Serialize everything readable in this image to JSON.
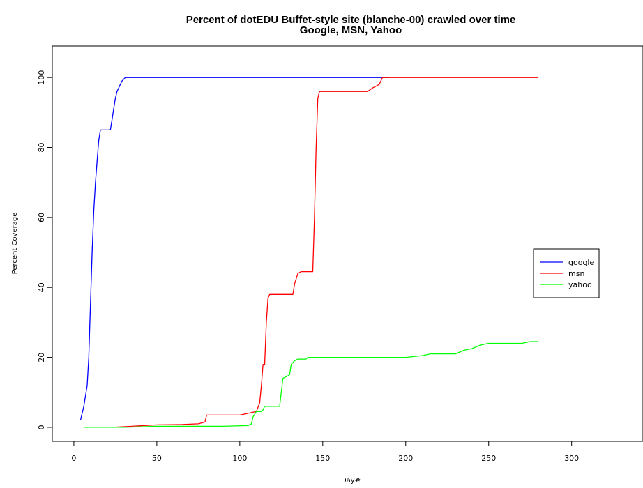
{
  "chart_data": {
    "type": "line",
    "title": "Percent of dotEDU Buffet-style site (blanche-00) crawled over time",
    "subtitle": "Google, MSN, Yahoo",
    "xlabel": "Day#",
    "ylabel": "Percent Coverage",
    "xlim": [
      -13,
      343
    ],
    "ylim": [
      -4,
      109
    ],
    "xticks": [
      0,
      50,
      100,
      150,
      200,
      250,
      300
    ],
    "yticks": [
      0,
      20,
      40,
      60,
      80,
      100
    ],
    "legend_position": "right",
    "grid": false,
    "series": [
      {
        "name": "google",
        "color": "#0000ff",
        "points": [
          [
            4,
            2
          ],
          [
            6,
            6
          ],
          [
            8,
            12
          ],
          [
            9,
            20
          ],
          [
            10,
            35
          ],
          [
            11,
            50
          ],
          [
            12,
            62
          ],
          [
            13,
            70
          ],
          [
            14,
            76
          ],
          [
            15,
            82
          ],
          [
            16,
            85
          ],
          [
            22,
            85
          ],
          [
            23,
            88
          ],
          [
            24,
            91
          ],
          [
            25,
            94
          ],
          [
            26,
            96
          ],
          [
            27,
            97
          ],
          [
            28,
            98
          ],
          [
            29,
            99
          ],
          [
            30,
            99.5
          ],
          [
            31,
            100
          ],
          [
            190,
            100
          ]
        ]
      },
      {
        "name": "msn",
        "color": "#ff0000",
        "points": [
          [
            23,
            0
          ],
          [
            35,
            0.3
          ],
          [
            50,
            0.7
          ],
          [
            65,
            0.8
          ],
          [
            75,
            1
          ],
          [
            79,
            1.5
          ],
          [
            80,
            3.5
          ],
          [
            100,
            3.5
          ],
          [
            105,
            4
          ],
          [
            110,
            4.5
          ],
          [
            112,
            7
          ],
          [
            113,
            12
          ],
          [
            114,
            18
          ],
          [
            115,
            18
          ],
          [
            116,
            30
          ],
          [
            117,
            37
          ],
          [
            118,
            38
          ],
          [
            125,
            38
          ],
          [
            132,
            38
          ],
          [
            133,
            41
          ],
          [
            135,
            44
          ],
          [
            137,
            44.5
          ],
          [
            140,
            44.5
          ],
          [
            144,
            44.5
          ],
          [
            145,
            60
          ],
          [
            146,
            80
          ],
          [
            147,
            94
          ],
          [
            148,
            96
          ],
          [
            150,
            96
          ],
          [
            170,
            96
          ],
          [
            177,
            96
          ],
          [
            180,
            97
          ],
          [
            184,
            98
          ],
          [
            186,
            100
          ],
          [
            280,
            100
          ]
        ]
      },
      {
        "name": "yahoo",
        "color": "#00ff00",
        "points": [
          [
            6,
            0
          ],
          [
            30,
            0
          ],
          [
            50,
            0.3
          ],
          [
            70,
            0.3
          ],
          [
            90,
            0.3
          ],
          [
            105,
            0.5
          ],
          [
            107,
            1
          ],
          [
            108,
            3
          ],
          [
            110,
            4.5
          ],
          [
            113,
            4.5
          ],
          [
            114,
            5
          ],
          [
            115,
            6
          ],
          [
            124,
            6
          ],
          [
            125,
            10
          ],
          [
            126,
            14
          ],
          [
            128,
            14.5
          ],
          [
            130,
            15
          ],
          [
            131,
            18
          ],
          [
            133,
            19
          ],
          [
            135,
            19.5
          ],
          [
            140,
            19.5
          ],
          [
            141,
            20
          ],
          [
            150,
            20
          ],
          [
            200,
            20
          ],
          [
            210,
            20.5
          ],
          [
            215,
            21
          ],
          [
            230,
            21
          ],
          [
            235,
            22
          ],
          [
            240,
            22.5
          ],
          [
            245,
            23.5
          ],
          [
            250,
            24
          ],
          [
            270,
            24
          ],
          [
            275,
            24.5
          ],
          [
            280,
            24.5
          ]
        ]
      }
    ]
  }
}
